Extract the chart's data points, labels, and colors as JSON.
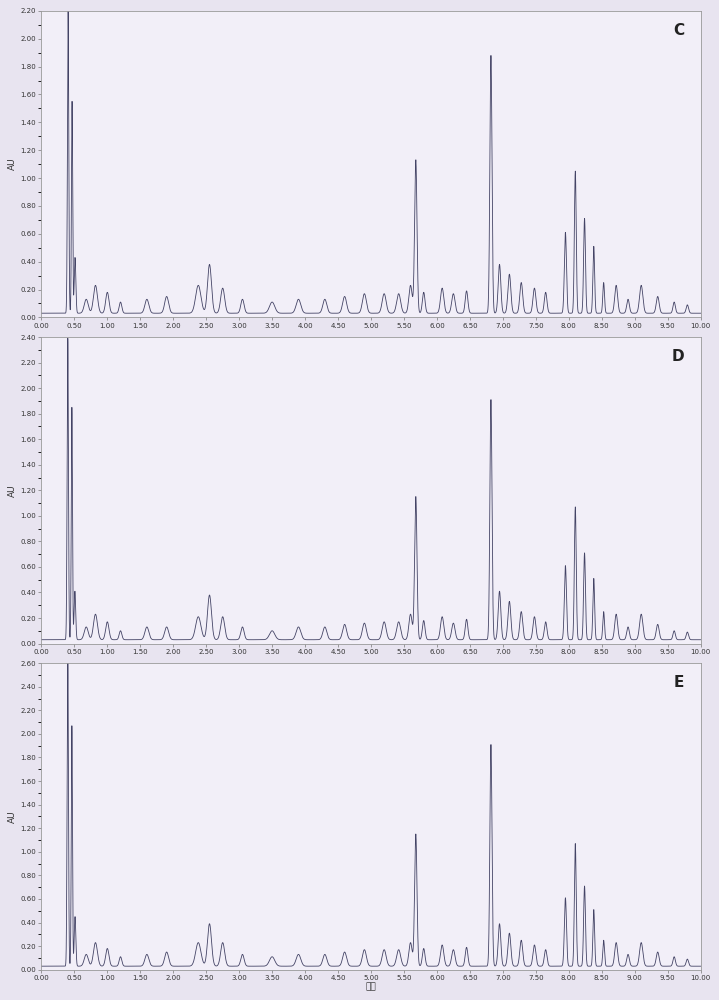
{
  "panels": [
    {
      "label": "C",
      "ylim": [
        0.0,
        2.2
      ],
      "yticks": [
        0.0,
        0.2,
        0.4,
        0.6,
        0.8,
        1.0,
        1.2,
        1.4,
        1.6,
        1.8,
        2.0,
        2.2
      ],
      "ylabel": "AU"
    },
    {
      "label": "D",
      "ylim": [
        0.0,
        2.4
      ],
      "yticks": [
        0.0,
        0.2,
        0.4,
        0.6,
        0.8,
        1.0,
        1.2,
        1.4,
        1.6,
        1.8,
        2.0,
        2.2,
        2.4
      ],
      "ylabel": "AU"
    },
    {
      "label": "E",
      "ylim": [
        0.0,
        2.6
      ],
      "yticks": [
        0.0,
        0.2,
        0.4,
        0.6,
        0.8,
        1.0,
        1.2,
        1.4,
        1.6,
        1.8,
        2.0,
        2.2,
        2.4,
        2.6
      ],
      "ylabel": "AU"
    }
  ],
  "xlim": [
    0.0,
    10.0
  ],
  "xticks": [
    0.0,
    0.5,
    1.0,
    1.5,
    2.0,
    2.5,
    3.0,
    3.5,
    4.0,
    4.5,
    5.0,
    5.5,
    6.0,
    6.5,
    7.0,
    7.5,
    8.0,
    8.5,
    9.0,
    9.5,
    10.0
  ],
  "xlabel": "分钟",
  "line_color": "#444466",
  "bg_color": "#f2eff8",
  "fig_color": "#e8e4f0",
  "border_color": "#999999",
  "line_width": 0.6
}
